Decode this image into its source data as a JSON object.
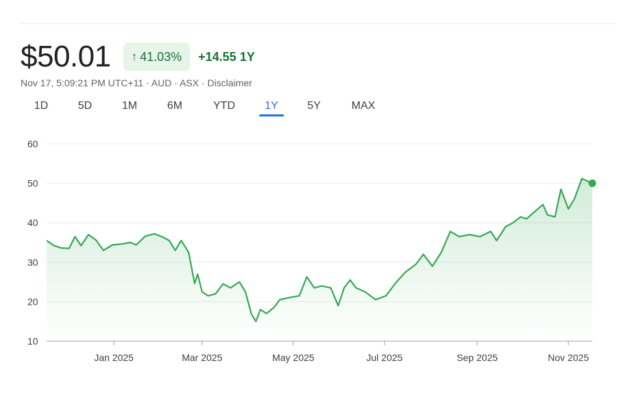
{
  "quote": {
    "price": "$50.01",
    "change_percent": "41.03%",
    "change_absolute": "+14.55",
    "period_label": "1Y",
    "meta": "Nov 17, 5:09:21 PM UTC+11 · AUD · ASX · Disclaimer"
  },
  "tabs": [
    {
      "label": "1D",
      "active": false
    },
    {
      "label": "5D",
      "active": false
    },
    {
      "label": "1M",
      "active": false
    },
    {
      "label": "6M",
      "active": false
    },
    {
      "label": "YTD",
      "active": false
    },
    {
      "label": "1Y",
      "active": true
    },
    {
      "label": "5Y",
      "active": false
    },
    {
      "label": "MAX",
      "active": false
    }
  ],
  "colors": {
    "line": "#34a853",
    "fill_top": "#34a853",
    "up": "#137333",
    "up_bg": "#e6f4ea",
    "active_tab": "#1a73e8"
  },
  "chart_data": {
    "type": "area",
    "title": "",
    "xlabel": "",
    "ylabel": "",
    "ylim": [
      10,
      60
    ],
    "yticks": [
      10,
      20,
      30,
      40,
      50,
      60
    ],
    "xlim": [
      "2024-11-17",
      "2025-11-17"
    ],
    "xticks": [
      {
        "date": "2025-01-01",
        "label": "Jan 2025"
      },
      {
        "date": "2025-03-01",
        "label": "Mar 2025"
      },
      {
        "date": "2025-05-01",
        "label": "May 2025"
      },
      {
        "date": "2025-07-01",
        "label": "Jul 2025"
      },
      {
        "date": "2025-09-01",
        "label": "Sep 2025"
      },
      {
        "date": "2025-11-01",
        "label": "Nov 2025"
      }
    ],
    "grid": true,
    "series": [
      {
        "points": [
          [
            "2024-11-17",
            35.5
          ],
          [
            "2024-11-22",
            34.2
          ],
          [
            "2024-11-27",
            33.6
          ],
          [
            "2024-12-02",
            33.5
          ],
          [
            "2024-12-06",
            36.5
          ],
          [
            "2024-12-10",
            34.2
          ],
          [
            "2024-12-15",
            37.0
          ],
          [
            "2024-12-20",
            35.6
          ],
          [
            "2024-12-25",
            33.0
          ],
          [
            "2024-12-31",
            34.4
          ],
          [
            "2025-01-06",
            34.6
          ],
          [
            "2025-01-12",
            35.0
          ],
          [
            "2025-01-16",
            34.4
          ],
          [
            "2025-01-22",
            36.6
          ],
          [
            "2025-01-28",
            37.2
          ],
          [
            "2025-02-02",
            36.5
          ],
          [
            "2025-02-07",
            35.5
          ],
          [
            "2025-02-11",
            33.0
          ],
          [
            "2025-02-15",
            35.5
          ],
          [
            "2025-02-20",
            32.5
          ],
          [
            "2025-02-24",
            24.6
          ],
          [
            "2025-02-26",
            27.0
          ],
          [
            "2025-03-01",
            22.5
          ],
          [
            "2025-03-05",
            21.5
          ],
          [
            "2025-03-10",
            22.0
          ],
          [
            "2025-03-15",
            24.5
          ],
          [
            "2025-03-20",
            23.5
          ],
          [
            "2025-03-26",
            25.0
          ],
          [
            "2025-03-30",
            22.5
          ],
          [
            "2025-04-03",
            16.8
          ],
          [
            "2025-04-06",
            15.0
          ],
          [
            "2025-04-09",
            18.0
          ],
          [
            "2025-04-13",
            17.0
          ],
          [
            "2025-04-18",
            18.5
          ],
          [
            "2025-04-22",
            20.5
          ],
          [
            "2025-04-28",
            21.0
          ],
          [
            "2025-05-05",
            21.5
          ],
          [
            "2025-05-10",
            26.3
          ],
          [
            "2025-05-15",
            23.5
          ],
          [
            "2025-05-20",
            24.0
          ],
          [
            "2025-05-26",
            23.5
          ],
          [
            "2025-05-31",
            19.0
          ],
          [
            "2025-06-04",
            23.5
          ],
          [
            "2025-06-08",
            25.5
          ],
          [
            "2025-06-12",
            23.5
          ],
          [
            "2025-06-18",
            22.5
          ],
          [
            "2025-06-25",
            20.5
          ],
          [
            "2025-07-02",
            21.5
          ],
          [
            "2025-07-09",
            25.0
          ],
          [
            "2025-07-15",
            27.5
          ],
          [
            "2025-07-22",
            29.5
          ],
          [
            "2025-07-27",
            32.0
          ],
          [
            "2025-08-02",
            29.0
          ],
          [
            "2025-08-08",
            32.5
          ],
          [
            "2025-08-14",
            37.8
          ],
          [
            "2025-08-20",
            36.5
          ],
          [
            "2025-08-27",
            37.0
          ],
          [
            "2025-09-03",
            36.5
          ],
          [
            "2025-09-10",
            37.8
          ],
          [
            "2025-09-14",
            35.5
          ],
          [
            "2025-09-20",
            39.0
          ],
          [
            "2025-09-25",
            40.0
          ],
          [
            "2025-09-30",
            41.5
          ],
          [
            "2025-10-04",
            41.0
          ],
          [
            "2025-10-10",
            43.0
          ],
          [
            "2025-10-15",
            44.6
          ],
          [
            "2025-10-18",
            42.0
          ],
          [
            "2025-10-23",
            41.5
          ],
          [
            "2025-10-27",
            48.5
          ],
          [
            "2025-11-01",
            43.5
          ],
          [
            "2025-11-05",
            46.0
          ],
          [
            "2025-11-10",
            51.2
          ],
          [
            "2025-11-17",
            50.01
          ]
        ]
      }
    ]
  }
}
